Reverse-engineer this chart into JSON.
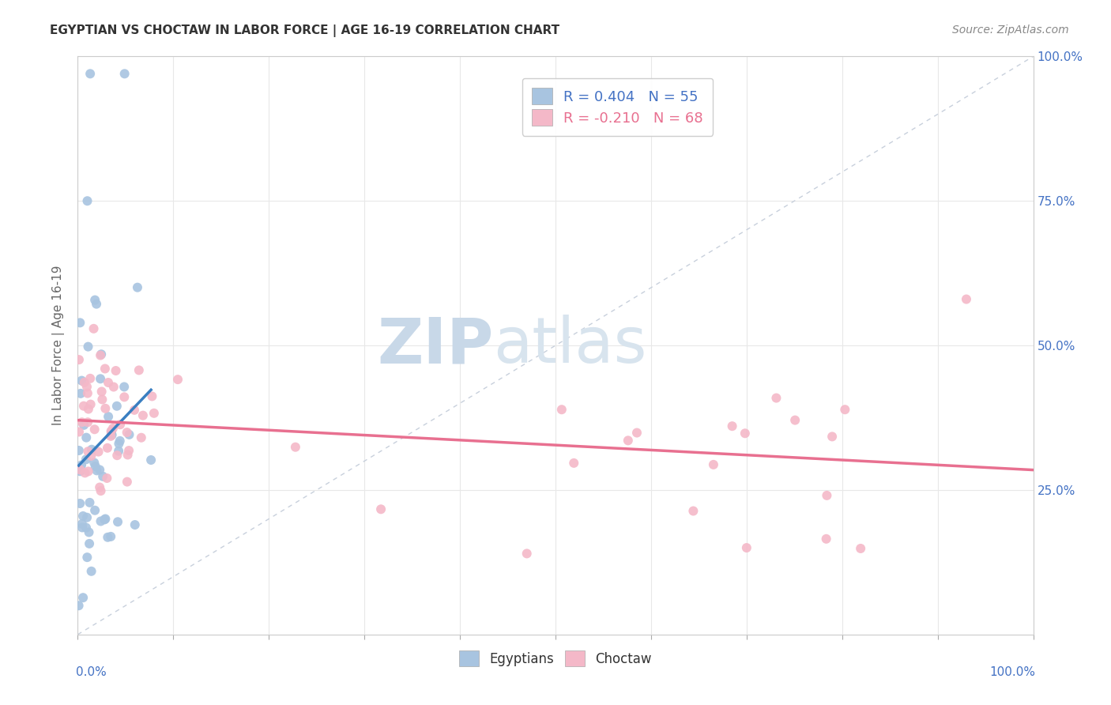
{
  "title": "EGYPTIAN VS CHOCTAW IN LABOR FORCE | AGE 16-19 CORRELATION CHART",
  "source": "Source: ZipAtlas.com",
  "ylabel": "In Labor Force | Age 16-19",
  "R_egyptian": 0.404,
  "N_egyptian": 55,
  "R_choctaw": -0.21,
  "N_choctaw": 68,
  "color_egyptian": "#a8c4e0",
  "color_choctaw": "#f4b8c8",
  "line_color_egyptian": "#3a7fc1",
  "line_color_choctaw": "#e87090",
  "diagonal_color": "#c8d0dc",
  "watermark_zip": "ZIP",
  "watermark_atlas": "atlas",
  "watermark_color_zip": "#c8d8e8",
  "watermark_color_atlas": "#d8e4ee",
  "bg_color": "#ffffff",
  "grid_color": "#e8e8e8",
  "title_color": "#333333",
  "source_color": "#888888",
  "axis_label_color": "#4472c4",
  "ylabel_color": "#666666"
}
